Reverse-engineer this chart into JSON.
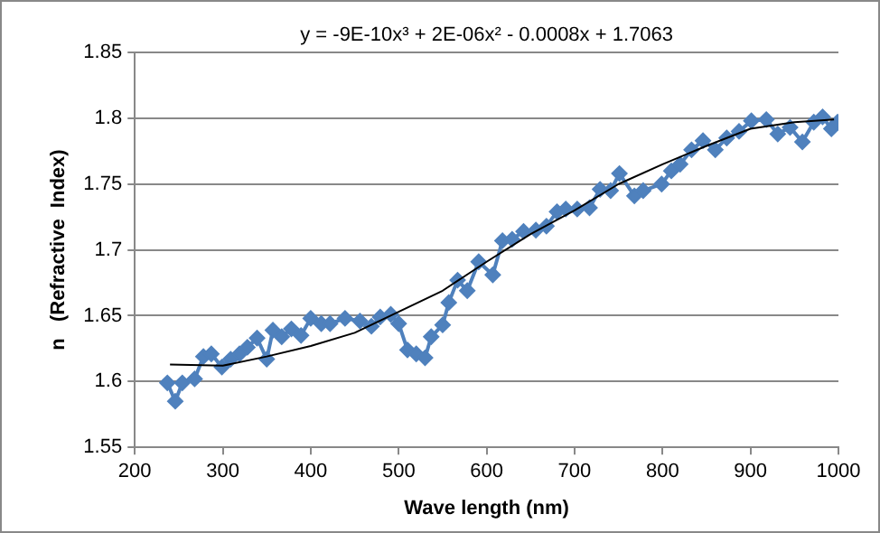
{
  "chart_data": {
    "type": "line",
    "xlabel": "Wave length (nm)",
    "ylabel": "n   (Refractive  Index)",
    "annotations": [
      "y = -9E-10x³ + 2E-06x² - 0.0008x + 1.7063"
    ],
    "xlim": [
      200,
      1000
    ],
    "xticks": [
      200,
      300,
      400,
      500,
      600,
      700,
      800,
      900,
      1000
    ],
    "ylim": [
      1.55,
      1.85
    ],
    "yticks": [
      1.55,
      1.6,
      1.65,
      1.7,
      1.75,
      1.8,
      1.85
    ],
    "grid": "y",
    "legend": false,
    "series": [
      {
        "color": "#4f81bd",
        "marker": "diamond",
        "x": [
          237,
          246,
          254,
          268,
          278,
          287,
          299,
          309,
          319,
          328,
          339,
          350,
          357,
          367,
          378,
          389,
          400,
          412,
          422,
          439,
          456,
          469,
          479,
          491,
          500,
          510,
          520,
          530,
          537,
          550,
          557,
          567,
          578,
          591,
          607,
          618,
          629,
          642,
          656,
          668,
          680,
          690,
          703,
          717,
          729,
          741,
          751,
          768,
          778,
          799,
          810,
          820,
          833,
          846,
          860,
          873,
          887,
          901,
          918,
          931,
          945,
          959,
          972,
          982,
          992,
          999
        ],
        "values": [
          1.599,
          1.585,
          1.599,
          1.602,
          1.619,
          1.621,
          1.611,
          1.617,
          1.621,
          1.626,
          1.633,
          1.617,
          1.639,
          1.634,
          1.64,
          1.635,
          1.648,
          1.644,
          1.644,
          1.648,
          1.646,
          1.642,
          1.649,
          1.651,
          1.644,
          1.624,
          1.621,
          1.618,
          1.634,
          1.643,
          1.66,
          1.677,
          1.669,
          1.691,
          1.681,
          1.707,
          1.708,
          1.714,
          1.715,
          1.718,
          1.729,
          1.731,
          1.731,
          1.732,
          1.746,
          1.745,
          1.758,
          1.741,
          1.745,
          1.75,
          1.76,
          1.765,
          1.776,
          1.783,
          1.776,
          1.785,
          1.79,
          1.798,
          1.799,
          1.788,
          1.793,
          1.782,
          1.797,
          1.801,
          1.792,
          1.797
        ]
      },
      {
        "color": "#000000",
        "marker": "none",
        "x": [
          240,
          300,
          350,
          400,
          450,
          500,
          550,
          600,
          650,
          700,
          750,
          800,
          850,
          900,
          950,
          995
        ],
        "values": [
          1.613,
          1.612,
          1.619,
          1.627,
          1.637,
          1.653,
          1.669,
          1.691,
          1.712,
          1.73,
          1.75,
          1.765,
          1.779,
          1.792,
          1.797,
          1.799
        ]
      }
    ]
  }
}
